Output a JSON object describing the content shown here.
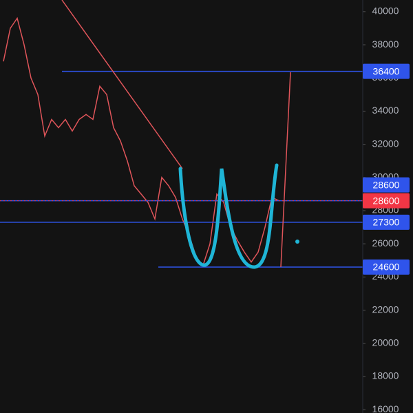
{
  "chart_data": {
    "type": "line",
    "categories": [
      null,
      null,
      null,
      null,
      null,
      null,
      null,
      null,
      null,
      null,
      null,
      null,
      null,
      null,
      null,
      null,
      null,
      null,
      null,
      null,
      null,
      null,
      null,
      null,
      null,
      null,
      null,
      null,
      null,
      null,
      null,
      null,
      null,
      null,
      null,
      null,
      null,
      null,
      null,
      null,
      null
    ],
    "series": [
      {
        "color": "#e0555a",
        "values": [
          37000,
          39000,
          39600,
          38000,
          36000,
          35000,
          32500,
          33500,
          33000,
          33500,
          32800,
          33500,
          33800,
          33500,
          35500,
          35000,
          33000,
          32200,
          31000,
          29500,
          29000,
          28500,
          27500,
          30000,
          29500,
          28800,
          27500,
          26500,
          25200,
          24700,
          26000,
          29000,
          28500,
          27000,
          26200,
          25500,
          24900,
          25500,
          27000,
          28800,
          28600
        ]
      }
    ],
    "ylim": [
      15800,
      40700
    ],
    "yticks": [
      16000,
      18000,
      20000,
      22000,
      24000,
      26000,
      28000,
      30000,
      32000,
      34000,
      36000,
      38000,
      40000
    ],
    "levels": [
      {
        "value": 36400,
        "color": "#2f54eb"
      },
      {
        "value": 28600,
        "color": "#2f54eb"
      },
      {
        "value": 27300,
        "color": "#2f54eb"
      },
      {
        "value": 24600,
        "color": "#2f54eb"
      }
    ],
    "last_price": 28600,
    "last_price_color": "#f23645"
  }
}
